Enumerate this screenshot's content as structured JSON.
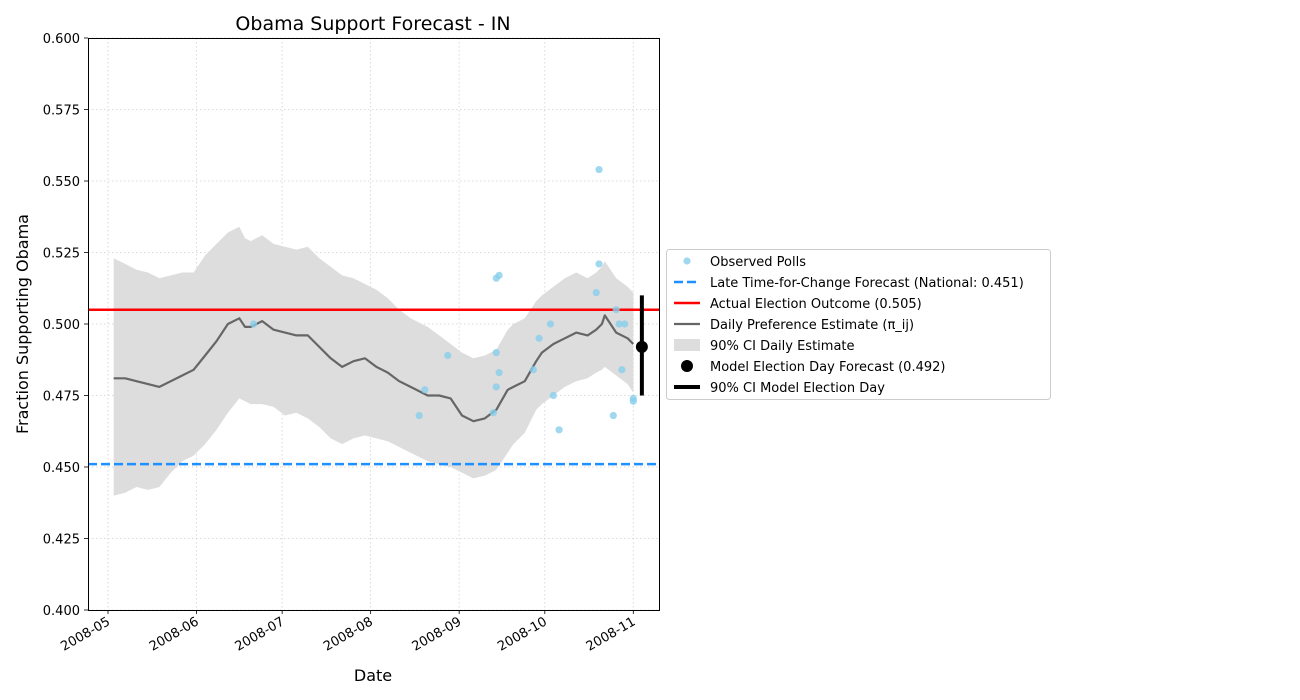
{
  "chart_data": {
    "type": "line",
    "title": "Obama Support Forecast - IN",
    "xlabel": "Date",
    "ylabel": "Fraction Supporting Obama",
    "ylim": [
      0.4,
      0.6
    ],
    "xlim": [
      "2008-04-24",
      "2008-11-10"
    ],
    "grid": true,
    "legend_position": "right, outside plot",
    "x_ticks": [
      "2008-05",
      "2008-06",
      "2008-07",
      "2008-08",
      "2008-09",
      "2008-10",
      "2008-11"
    ],
    "y_ticks": [
      "0.400",
      "0.425",
      "0.450",
      "0.475",
      "0.500",
      "0.525",
      "0.550",
      "0.575",
      "0.600"
    ],
    "legend": [
      {
        "key": "polls",
        "label": "Observed Polls"
      },
      {
        "key": "tfc",
        "label": "Late Time-for-Change Forecast (National: 0.451)"
      },
      {
        "key": "actual",
        "label": "Actual Election Outcome (0.505)"
      },
      {
        "key": "daily",
        "label": "Daily Preference Estimate (π_ij)"
      },
      {
        "key": "band",
        "label": "90% CI Daily Estimate"
      },
      {
        "key": "eday",
        "label": "Model Election Day Forecast (0.492)"
      },
      {
        "key": "edayci",
        "label": "90% CI Model Election Day"
      }
    ],
    "colors": {
      "polls": "#87ceeb",
      "tfc": "#1e90ff",
      "actual": "#ff0000",
      "daily": "#666666",
      "band": "#dddddd",
      "eday": "#000000"
    },
    "late_tfc_forecast": 0.451,
    "actual_outcome": 0.505,
    "election_day": {
      "date": "2008-11-04",
      "forecast": 0.492,
      "ci": [
        0.475,
        0.51
      ]
    },
    "daily_estimate": {
      "x": [
        "2008-05-03",
        "2008-05-07",
        "2008-05-11",
        "2008-05-15",
        "2008-05-19",
        "2008-05-23",
        "2008-05-27",
        "2008-05-31",
        "2008-06-04",
        "2008-06-08",
        "2008-06-12",
        "2008-06-16",
        "2008-06-18",
        "2008-06-20",
        "2008-06-24",
        "2008-06-28",
        "2008-07-02",
        "2008-07-06",
        "2008-07-10",
        "2008-07-14",
        "2008-07-18",
        "2008-07-22",
        "2008-07-26",
        "2008-07-30",
        "2008-08-03",
        "2008-08-07",
        "2008-08-11",
        "2008-08-15",
        "2008-08-19",
        "2008-08-21",
        "2008-08-25",
        "2008-08-29",
        "2008-09-02",
        "2008-09-06",
        "2008-09-10",
        "2008-09-14",
        "2008-09-18",
        "2008-09-20",
        "2008-09-24",
        "2008-09-28",
        "2008-09-30",
        "2008-10-04",
        "2008-10-08",
        "2008-10-12",
        "2008-10-16",
        "2008-10-19",
        "2008-10-21",
        "2008-10-22",
        "2008-10-26",
        "2008-10-30",
        "2008-11-01"
      ],
      "mean": [
        0.481,
        0.481,
        0.48,
        0.479,
        0.478,
        0.48,
        0.482,
        0.484,
        0.489,
        0.494,
        0.5,
        0.502,
        0.499,
        0.499,
        0.501,
        0.498,
        0.497,
        0.496,
        0.496,
        0.492,
        0.488,
        0.485,
        0.487,
        0.488,
        0.485,
        0.483,
        0.48,
        0.478,
        0.476,
        0.475,
        0.475,
        0.474,
        0.468,
        0.466,
        0.467,
        0.47,
        0.477,
        0.478,
        0.48,
        0.487,
        0.49,
        0.493,
        0.495,
        0.497,
        0.496,
        0.498,
        0.5,
        0.503,
        0.497,
        0.495,
        0.493
      ],
      "lower": [
        0.44,
        0.441,
        0.443,
        0.442,
        0.443,
        0.448,
        0.452,
        0.454,
        0.458,
        0.463,
        0.469,
        0.474,
        0.473,
        0.472,
        0.472,
        0.471,
        0.468,
        0.469,
        0.467,
        0.464,
        0.46,
        0.458,
        0.46,
        0.461,
        0.46,
        0.459,
        0.457,
        0.455,
        0.453,
        0.452,
        0.451,
        0.45,
        0.448,
        0.446,
        0.447,
        0.449,
        0.455,
        0.458,
        0.462,
        0.47,
        0.472,
        0.475,
        0.478,
        0.48,
        0.481,
        0.483,
        0.484,
        0.485,
        0.482,
        0.479,
        0.476
      ],
      "upper": [
        0.523,
        0.521,
        0.519,
        0.518,
        0.516,
        0.517,
        0.518,
        0.518,
        0.524,
        0.528,
        0.532,
        0.534,
        0.53,
        0.529,
        0.531,
        0.528,
        0.527,
        0.526,
        0.527,
        0.523,
        0.52,
        0.517,
        0.516,
        0.514,
        0.512,
        0.509,
        0.505,
        0.502,
        0.5,
        0.499,
        0.496,
        0.493,
        0.49,
        0.488,
        0.489,
        0.491,
        0.498,
        0.5,
        0.502,
        0.508,
        0.51,
        0.513,
        0.516,
        0.518,
        0.516,
        0.518,
        0.52,
        0.522,
        0.516,
        0.513,
        0.511
      ]
    },
    "observed_polls": {
      "x": [
        "2008-06-21",
        "2008-08-18",
        "2008-08-20",
        "2008-08-28",
        "2008-09-13",
        "2008-09-14",
        "2008-09-14",
        "2008-09-14",
        "2008-09-15",
        "2008-09-15",
        "2008-09-27",
        "2008-09-29",
        "2008-10-03",
        "2008-10-04",
        "2008-10-06",
        "2008-10-19",
        "2008-10-20",
        "2008-10-20",
        "2008-10-25",
        "2008-10-26",
        "2008-10-27",
        "2008-10-28",
        "2008-10-29",
        "2008-11-01",
        "2008-11-01"
      ],
      "y": [
        0.5,
        0.468,
        0.477,
        0.489,
        0.469,
        0.516,
        0.478,
        0.49,
        0.483,
        0.517,
        0.484,
        0.495,
        0.5,
        0.475,
        0.463,
        0.511,
        0.521,
        0.554,
        0.468,
        0.505,
        0.5,
        0.484,
        0.5,
        0.474,
        0.473
      ]
    }
  }
}
